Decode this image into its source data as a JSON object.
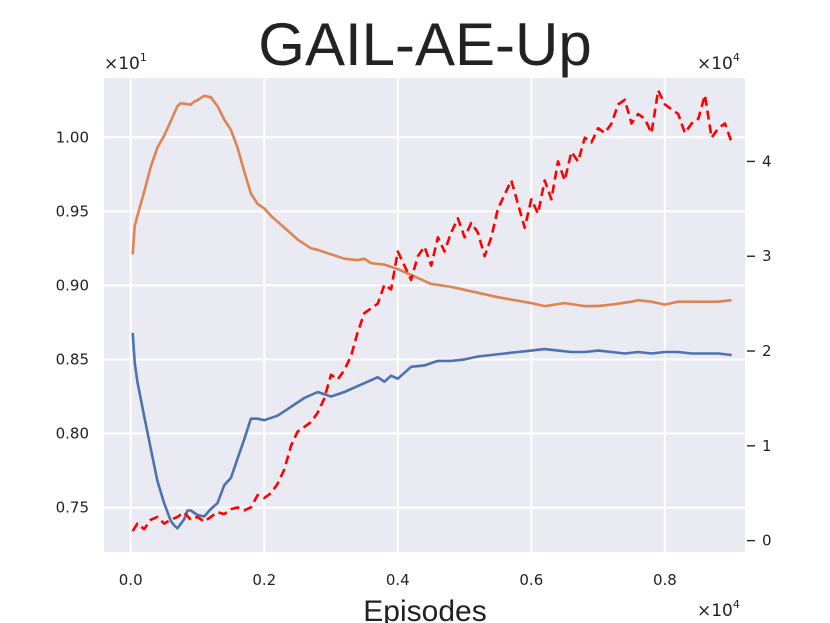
{
  "chart_data": {
    "type": "line",
    "title": "GAIL-AE-Up",
    "xlabel": "Episodes",
    "ylabel": "",
    "x_multiplier": "×10",
    "x_multiplier_exp": "4",
    "y_multiplier": "×10",
    "y_multiplier_exp": "1",
    "y2_multiplier": "×10",
    "y2_multiplier_exp": "4",
    "xlim": [
      -0.04,
      0.92
    ],
    "ylim": [
      0.72,
      1.04
    ],
    "y2lim": [
      -0.12,
      4.88
    ],
    "xticks": [
      0.0,
      0.2,
      0.4,
      0.6,
      0.8
    ],
    "xtick_labels": [
      "0.0",
      "0.2",
      "0.4",
      "0.6",
      "0.8"
    ],
    "yticks": [
      0.75,
      0.8,
      0.85,
      0.9,
      0.95,
      1.0
    ],
    "ytick_labels": [
      "0.75",
      "0.80",
      "0.85",
      "0.90",
      "0.95",
      "1.00"
    ],
    "y2ticks": [
      0,
      1,
      2,
      3,
      4
    ],
    "y2tick_labels": [
      "0",
      "1",
      "2",
      "3",
      "4"
    ],
    "grid": true,
    "series": [
      {
        "axis": "left",
        "color": "#dd8452",
        "style": "solid",
        "x": [
          0.003,
          0.006,
          0.01,
          0.02,
          0.03,
          0.04,
          0.05,
          0.06,
          0.07,
          0.075,
          0.09,
          0.095,
          0.1,
          0.11,
          0.12,
          0.13,
          0.14,
          0.15,
          0.16,
          0.17,
          0.18,
          0.19,
          0.2,
          0.21,
          0.22,
          0.23,
          0.24,
          0.25,
          0.26,
          0.27,
          0.28,
          0.3,
          0.32,
          0.34,
          0.35,
          0.36,
          0.38,
          0.4,
          0.42,
          0.45,
          0.48,
          0.5,
          0.55,
          0.6,
          0.62,
          0.65,
          0.68,
          0.7,
          0.72,
          0.75,
          0.76,
          0.78,
          0.8,
          0.82,
          0.84,
          0.86,
          0.88,
          0.9
        ],
        "values": [
          0.921,
          0.94,
          0.947,
          0.963,
          0.98,
          0.993,
          1.001,
          1.011,
          1.021,
          1.023,
          1.022,
          1.024,
          1.025,
          1.028,
          1.027,
          1.021,
          1.012,
          1.005,
          0.993,
          0.977,
          0.962,
          0.955,
          0.952,
          0.947,
          0.943,
          0.939,
          0.935,
          0.931,
          0.928,
          0.925,
          0.924,
          0.921,
          0.918,
          0.917,
          0.918,
          0.915,
          0.914,
          0.911,
          0.907,
          0.901,
          0.899,
          0.897,
          0.892,
          0.888,
          0.886,
          0.888,
          0.886,
          0.886,
          0.887,
          0.889,
          0.89,
          0.889,
          0.887,
          0.889,
          0.889,
          0.889,
          0.889,
          0.89
        ]
      },
      {
        "axis": "left",
        "color": "#4c72b0",
        "style": "solid",
        "x": [
          0.003,
          0.006,
          0.01,
          0.02,
          0.03,
          0.04,
          0.05,
          0.06,
          0.065,
          0.07,
          0.08,
          0.085,
          0.09,
          0.1,
          0.11,
          0.12,
          0.13,
          0.14,
          0.15,
          0.16,
          0.17,
          0.18,
          0.19,
          0.2,
          0.22,
          0.24,
          0.26,
          0.28,
          0.3,
          0.32,
          0.34,
          0.36,
          0.37,
          0.38,
          0.39,
          0.4,
          0.42,
          0.44,
          0.46,
          0.48,
          0.5,
          0.52,
          0.54,
          0.56,
          0.58,
          0.6,
          0.62,
          0.64,
          0.66,
          0.68,
          0.7,
          0.72,
          0.74,
          0.76,
          0.78,
          0.8,
          0.82,
          0.84,
          0.86,
          0.88,
          0.9
        ],
        "values": [
          0.868,
          0.848,
          0.835,
          0.812,
          0.79,
          0.768,
          0.753,
          0.741,
          0.738,
          0.736,
          0.742,
          0.748,
          0.748,
          0.745,
          0.744,
          0.749,
          0.753,
          0.765,
          0.77,
          0.783,
          0.796,
          0.81,
          0.81,
          0.809,
          0.812,
          0.818,
          0.824,
          0.828,
          0.825,
          0.828,
          0.832,
          0.836,
          0.838,
          0.835,
          0.839,
          0.837,
          0.845,
          0.846,
          0.849,
          0.849,
          0.85,
          0.852,
          0.853,
          0.854,
          0.855,
          0.856,
          0.857,
          0.856,
          0.855,
          0.855,
          0.856,
          0.855,
          0.854,
          0.855,
          0.854,
          0.855,
          0.855,
          0.854,
          0.854,
          0.854,
          0.853
        ]
      },
      {
        "axis": "right",
        "color": "#ff0000",
        "style": "dashed",
        "x": [
          0.003,
          0.01,
          0.02,
          0.03,
          0.04,
          0.05,
          0.06,
          0.07,
          0.08,
          0.09,
          0.1,
          0.11,
          0.12,
          0.13,
          0.14,
          0.15,
          0.16,
          0.17,
          0.18,
          0.19,
          0.2,
          0.21,
          0.22,
          0.23,
          0.24,
          0.25,
          0.26,
          0.27,
          0.28,
          0.29,
          0.3,
          0.31,
          0.32,
          0.33,
          0.34,
          0.35,
          0.36,
          0.37,
          0.38,
          0.39,
          0.4,
          0.41,
          0.42,
          0.43,
          0.44,
          0.45,
          0.46,
          0.47,
          0.48,
          0.49,
          0.5,
          0.51,
          0.52,
          0.53,
          0.54,
          0.55,
          0.56,
          0.57,
          0.58,
          0.59,
          0.6,
          0.61,
          0.62,
          0.63,
          0.64,
          0.65,
          0.66,
          0.67,
          0.68,
          0.69,
          0.7,
          0.71,
          0.72,
          0.73,
          0.74,
          0.75,
          0.76,
          0.77,
          0.78,
          0.79,
          0.8,
          0.81,
          0.82,
          0.83,
          0.84,
          0.85,
          0.86,
          0.87,
          0.88,
          0.89,
          0.9
        ],
        "values": [
          0.1,
          0.18,
          0.12,
          0.22,
          0.25,
          0.18,
          0.22,
          0.25,
          0.3,
          0.22,
          0.25,
          0.2,
          0.25,
          0.3,
          0.28,
          0.33,
          0.35,
          0.32,
          0.35,
          0.48,
          0.45,
          0.5,
          0.6,
          0.75,
          1.0,
          1.15,
          1.2,
          1.25,
          1.35,
          1.5,
          1.75,
          1.7,
          1.8,
          1.95,
          2.2,
          2.4,
          2.45,
          2.5,
          2.7,
          2.65,
          3.05,
          2.9,
          2.75,
          3.0,
          3.1,
          2.9,
          3.2,
          3.05,
          3.25,
          3.4,
          3.2,
          3.35,
          3.25,
          3.0,
          3.2,
          3.5,
          3.65,
          3.8,
          3.55,
          3.3,
          3.6,
          3.45,
          3.8,
          3.6,
          4.0,
          3.8,
          4.1,
          4.0,
          4.25,
          4.2,
          4.35,
          4.3,
          4.4,
          4.6,
          4.65,
          4.4,
          4.5,
          4.45,
          4.3,
          4.75,
          4.6,
          4.55,
          4.5,
          4.3,
          4.4,
          4.45,
          4.7,
          4.25,
          4.35,
          4.4,
          4.2
        ]
      }
    ]
  }
}
